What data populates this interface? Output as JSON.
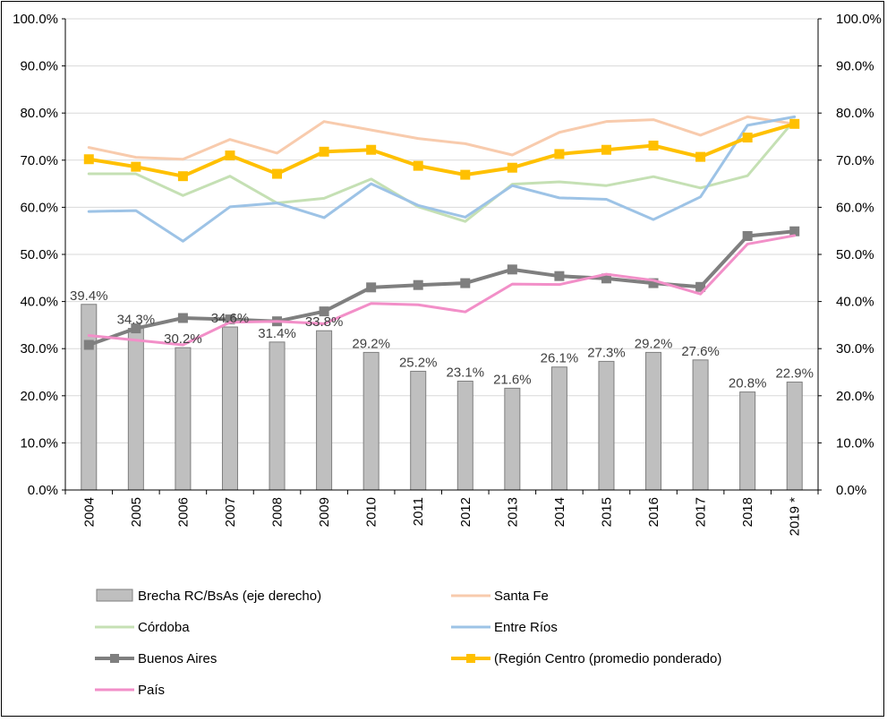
{
  "chart_data": {
    "type": "bar+line",
    "categories": [
      "2004",
      "2005",
      "2006",
      "2007",
      "2008",
      "2009",
      "2010",
      "2011",
      "2012",
      "2013",
      "2014",
      "2015",
      "2016",
      "2017",
      "2018",
      "2019 *"
    ],
    "y_left": {
      "min": 0,
      "max": 100,
      "step": 10,
      "tick_labels": [
        "0.0%",
        "10.0%",
        "20.0%",
        "30.0%",
        "40.0%",
        "50.0%",
        "60.0%",
        "70.0%",
        "80.0%",
        "90.0%",
        "100.0%"
      ]
    },
    "y_right": {
      "min": 0,
      "max": 100,
      "step": 10,
      "tick_labels": [
        "0.0%",
        "10.0%",
        "20.0%",
        "30.0%",
        "40.0%",
        "50.0%",
        "60.0%",
        "70.0%",
        "80.0%",
        "90.0%",
        "100.0%"
      ]
    },
    "grid": true,
    "legend_position": "bottom",
    "bars": {
      "name": "Brecha RC/BsAs (eje derecho)",
      "color": "#bfbfbf",
      "values": [
        39.4,
        34.3,
        30.2,
        34.6,
        31.4,
        33.8,
        29.2,
        25.2,
        23.1,
        21.6,
        26.1,
        27.3,
        29.2,
        27.6,
        20.8,
        22.9
      ],
      "labels": [
        "39.4%",
        "34.3%",
        "30.2%",
        "34.6%",
        "31.4%",
        "33.8%",
        "29.2%",
        "25.2%",
        "23.1%",
        "21.6%",
        "26.1%",
        "27.3%",
        "29.2%",
        "27.6%",
        "20.8%",
        "22.9%"
      ]
    },
    "series": [
      {
        "name": "Santa Fe",
        "color": "#f8cbad",
        "marker": false,
        "values": [
          72.7,
          70.6,
          70.2,
          74.4,
          71.5,
          78.2,
          76.4,
          74.6,
          73.5,
          71.1,
          75.9,
          78.2,
          78.6,
          75.3,
          79.2,
          77.7
        ]
      },
      {
        "name": "Córdoba",
        "color": "#c5e0b4",
        "marker": false,
        "values": [
          67.1,
          67.1,
          62.5,
          66.6,
          60.9,
          61.9,
          66.0,
          60.1,
          57.0,
          64.9,
          65.4,
          64.6,
          66.5,
          64.1,
          66.7,
          78.5
        ]
      },
      {
        "name": "Entre Ríos",
        "color": "#9dc3e6",
        "marker": false,
        "values": [
          59.1,
          59.3,
          52.8,
          60.1,
          60.9,
          57.8,
          65.0,
          60.4,
          57.9,
          64.6,
          62.0,
          61.7,
          57.4,
          62.2,
          77.4,
          79.2
        ]
      },
      {
        "name": "Buenos Aires",
        "color": "#7f7f7f",
        "marker": true,
        "values": [
          30.8,
          34.3,
          36.5,
          36.2,
          35.8,
          37.9,
          43.0,
          43.5,
          43.9,
          46.8,
          45.4,
          44.9,
          43.9,
          43.1,
          53.9,
          54.9
        ]
      },
      {
        "name": "(Región Centro (promedio ponderado)",
        "color": "#ffc000",
        "marker": true,
        "values": [
          70.2,
          68.6,
          66.6,
          71.0,
          67.1,
          71.8,
          72.2,
          68.8,
          66.9,
          68.4,
          71.3,
          72.2,
          73.1,
          70.7,
          74.8,
          77.7
        ]
      },
      {
        "name": "País",
        "color": "#f28fc8",
        "marker": false,
        "values": [
          32.8,
          31.8,
          30.8,
          35.6,
          35.8,
          35.3,
          39.6,
          39.3,
          37.8,
          43.7,
          43.6,
          45.8,
          44.5,
          41.6,
          52.2,
          54.0
        ]
      }
    ]
  }
}
